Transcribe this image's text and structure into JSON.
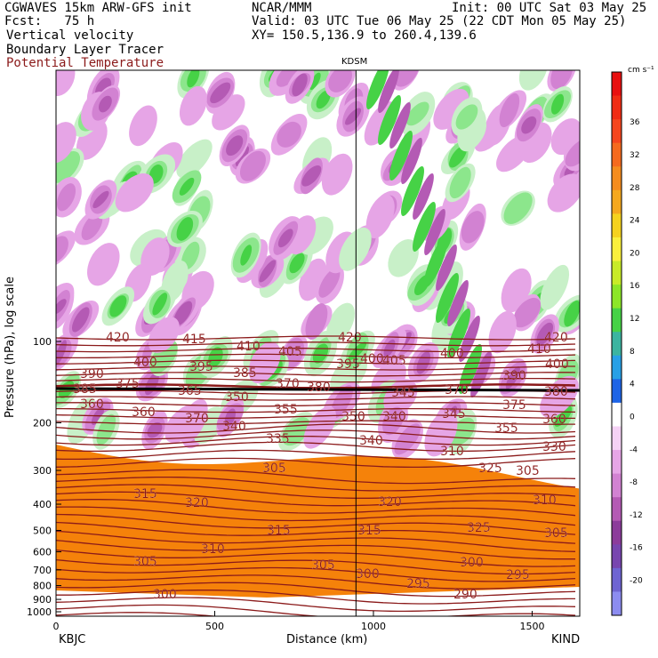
{
  "header": {
    "model": "CGWAVES 15km ARW-GFS init",
    "org": "NCAR/MMM",
    "init": "Init: 00 UTC Sat 03 May 25",
    "fcst": "Fcst:   75 h",
    "valid": "Valid: 03 UTC Tue 06 May 25 (22 CDT Mon 05 May 25)",
    "field1": "Vertical velocity",
    "field2": "Boundary Layer Tracer",
    "field3": "Potential Temperature",
    "xy": "XY= 150.5,136.9 to 260.4,139.6",
    "field3_color": "#8b1a1a"
  },
  "chart_data": {
    "type": "heatmap",
    "xlabel": "Distance (km)",
    "ylabel": "Pressure (hPa), log scale",
    "x_ticks": [
      0,
      500,
      1000,
      1500
    ],
    "xlim": [
      0,
      1650
    ],
    "y_ticks": [
      100,
      200,
      300,
      400,
      500,
      600,
      700,
      800,
      900,
      1000
    ],
    "y_scale": "log",
    "left_station": "KBJC",
    "right_station": "KIND",
    "marker_station": "KDSM",
    "marker_x": 945,
    "colorbar": {
      "units": "cm s⁻¹",
      "levels": [
        "36",
        "32",
        "28",
        "24",
        "20",
        "16",
        "12",
        "8",
        "4",
        "0",
        "-4",
        "-8",
        "-12",
        "-16",
        "-20"
      ],
      "colors": [
        "#e81010",
        "#f02c14",
        "#f5461e",
        "#f56a1e",
        "#f58c1e",
        "#f5a81e",
        "#f5d21e",
        "#faf03c",
        "#c8eb28",
        "#8ce628",
        "#46d246",
        "#3cb4a0",
        "#28a0e6",
        "#1e64e6",
        "#ffffff",
        "#f5d2f5",
        "#e6a5e6",
        "#d282d2",
        "#b45ab4",
        "#8c3c9b",
        "#7846af",
        "#6e64d2",
        "#8c8cf0"
      ]
    },
    "theta_labels": [
      "420",
      "415",
      "410",
      "405",
      "420",
      "400",
      "405",
      "410",
      "420",
      "390",
      "400",
      "395",
      "385",
      "395",
      "400",
      "390",
      "400",
      "375",
      "365",
      "370",
      "360",
      "380",
      "360",
      "350",
      "355",
      "345",
      "370",
      "375",
      "370",
      "340",
      "335",
      "330",
      "340",
      "345",
      "355",
      "350",
      "360",
      "340",
      "325",
      "305",
      "320",
      "320",
      "325",
      "310",
      "315",
      "315",
      "310",
      "305",
      "305",
      "300",
      "300",
      "295",
      "295",
      "290",
      "300",
      "380",
      "385",
      "305",
      "305",
      "310",
      "315"
    ],
    "tracer_colors": [
      "#f5820a",
      "#f5aa14",
      "#f0e628",
      "#c8eb28",
      "#50d25a",
      "#32b4c8",
      "#1e64e6"
    ]
  }
}
